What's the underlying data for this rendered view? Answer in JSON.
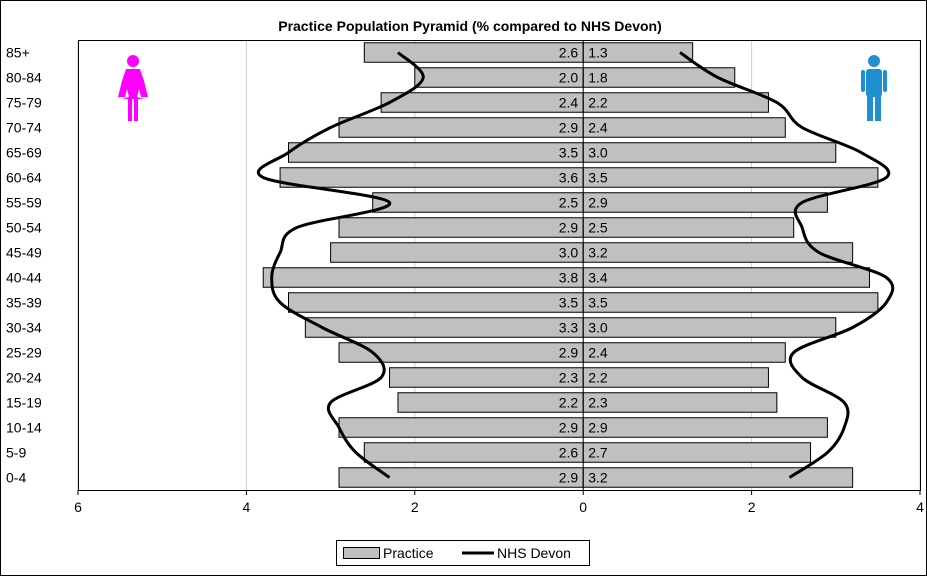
{
  "chart_data": {
    "type": "bar",
    "orientation": "horizontal",
    "title": "Practice Population Pyramid (% compared to NHS Devon)",
    "categories": [
      "85+",
      "80-84",
      "75-79",
      "70-74",
      "65-69",
      "60-64",
      "55-59",
      "50-54",
      "45-49",
      "40-44",
      "35-39",
      "30-34",
      "25-29",
      "20-24",
      "15-19",
      "10-14",
      "5-9",
      "0-4"
    ],
    "x_ticks": [
      "6",
      "4",
      "2",
      "0",
      "2",
      "4"
    ],
    "xlim": [
      -6,
      4
    ],
    "grid": "vertical",
    "legend_position": "bottom",
    "series": [
      {
        "name": "Practice",
        "style": "bar",
        "female": [
          2.6,
          2.0,
          2.4,
          2.9,
          3.5,
          3.6,
          2.5,
          2.9,
          3.0,
          3.8,
          3.5,
          3.3,
          2.9,
          2.3,
          2.2,
          2.9,
          2.6,
          2.9
        ],
        "male": [
          1.3,
          1.8,
          2.2,
          2.4,
          3.0,
          3.5,
          2.9,
          2.5,
          3.2,
          3.4,
          3.5,
          3.0,
          2.4,
          2.2,
          2.3,
          2.9,
          2.7,
          3.2
        ],
        "female_labels": [
          "2.6",
          "2.0",
          "2.4",
          "2.9",
          "3.5",
          "3.6",
          "2.5",
          "2.9",
          "3.0",
          "3.8",
          "3.5",
          "3.3",
          "2.9",
          "2.3",
          "2.2",
          "2.9",
          "2.6",
          "2.9"
        ],
        "male_labels": [
          "1.3",
          "1.8",
          "2.2",
          "2.4",
          "3.0",
          "3.5",
          "2.9",
          "2.5",
          "3.2",
          "3.4",
          "3.5",
          "3.0",
          "2.4",
          "2.2",
          "2.3",
          "2.9",
          "2.7",
          "3.2"
        ]
      },
      {
        "name": "NHS Devon",
        "style": "line",
        "female": [
          2.2,
          1.9,
          2.3,
          3.0,
          3.5,
          3.8,
          2.3,
          3.4,
          3.6,
          3.7,
          3.6,
          3.1,
          2.5,
          2.4,
          3.0,
          2.9,
          2.7,
          2.3
        ],
        "male": [
          1.15,
          1.6,
          2.3,
          2.6,
          3.3,
          3.6,
          2.6,
          2.6,
          2.8,
          3.6,
          3.6,
          3.2,
          2.5,
          2.6,
          3.1,
          3.1,
          2.9,
          2.45
        ]
      }
    ],
    "colors": {
      "bar_fill": "#c0c0c0",
      "line": "#000000",
      "female_icon": "#ff00ff",
      "male_icon": "#1e90d0"
    },
    "icons": {
      "left": "female-icon",
      "right": "male-icon"
    }
  }
}
